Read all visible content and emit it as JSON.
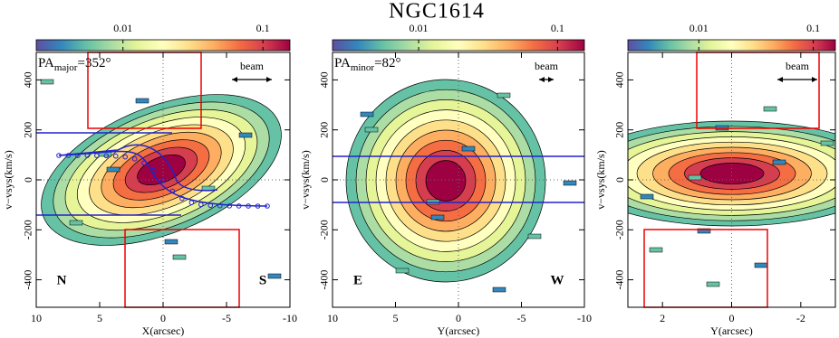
{
  "title": "NGC1614",
  "chart_data": [
    {
      "type": "heatmap",
      "xlabel": "X(arcsec)",
      "ylabel": "v−vsys(km/s)",
      "xlim": [
        10,
        -10
      ],
      "xticks": [
        10,
        5,
        0,
        -5,
        -10
      ],
      "ylim": [
        -510,
        510
      ],
      "yticks": [
        -400,
        -200,
        0,
        200,
        400
      ],
      "colorbar": {
        "scale": "log",
        "lim": [
          0.0024,
          0.156
        ],
        "ticks": [
          0.01,
          0.1
        ],
        "colors": [
          "#5e4fa2",
          "#3288bd",
          "#66c2a5",
          "#abdda4",
          "#e6f598",
          "#ffffbf",
          "#fee08b",
          "#fdae61",
          "#f46d43",
          "#d53e4f",
          "#9e0142"
        ]
      },
      "annotations": {
        "pa": {
          "base": "PA",
          "sub": "major",
          "rest": "=352°"
        },
        "beam": "beam",
        "left": "N",
        "right": "S"
      }
    },
    {
      "type": "heatmap",
      "xlabel": "Y(arcsec)",
      "ylabel": "v−vsys(km/s)",
      "xlim": [
        10,
        -10
      ],
      "xticks": [
        10,
        5,
        0,
        -5,
        -10
      ],
      "ylim": [
        -510,
        510
      ],
      "yticks": [
        -400,
        -200,
        0,
        200,
        400
      ],
      "colorbar": {
        "scale": "log",
        "lim": [
          0.0024,
          0.156
        ],
        "ticks": [
          0.01,
          0.1
        ],
        "colors": [
          "#5e4fa2",
          "#3288bd",
          "#66c2a5",
          "#abdda4",
          "#e6f598",
          "#ffffbf",
          "#fee08b",
          "#fdae61",
          "#f46d43",
          "#d53e4f",
          "#9e0142"
        ]
      },
      "annotations": {
        "pa": {
          "base": "PA",
          "sub": "minor",
          "rest": "=82°"
        },
        "beam": "beam",
        "left": "E",
        "right": "W"
      }
    },
    {
      "type": "heatmap",
      "xlabel": "Y(arcsec)",
      "ylabel": "v−vsys(km/s)",
      "xlim": [
        3,
        -3
      ],
      "xticks": [
        2,
        0,
        -2
      ],
      "ylim": [
        -510,
        510
      ],
      "yticks": [
        -400,
        -200,
        0,
        200,
        400
      ],
      "colorbar": {
        "scale": "log",
        "lim": [
          0.0024,
          0.156
        ],
        "ticks": [
          0.01,
          0.1
        ],
        "colors": [
          "#5e4fa2",
          "#3288bd",
          "#66c2a5",
          "#abdda4",
          "#e6f598",
          "#ffffbf",
          "#fee08b",
          "#fdae61",
          "#f46d43",
          "#d53e4f",
          "#9e0142"
        ]
      },
      "annotations": {
        "beam": "beam"
      }
    }
  ]
}
